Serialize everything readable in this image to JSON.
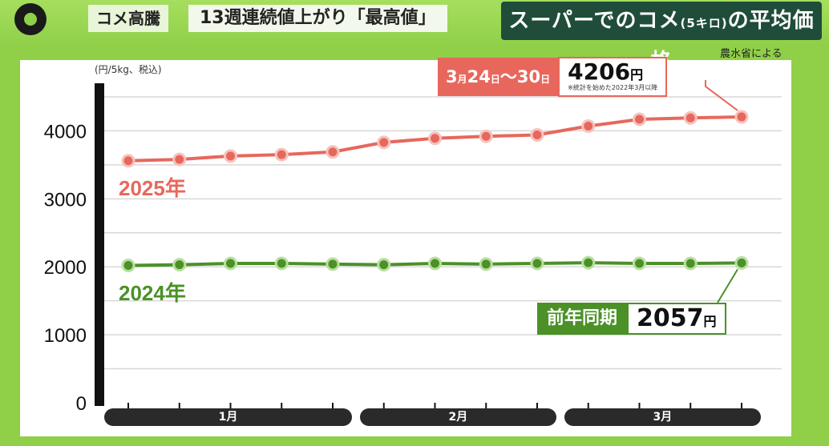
{
  "header": {
    "topic_label": "コメ高騰",
    "topic_headline": "13週連続値上がり「最高値」",
    "title_main": "スーパーでのコメ",
    "title_small": "(5キロ)",
    "title_tail": "の平均価格",
    "source": "農水省による"
  },
  "colors": {
    "series_2025": "#e8675c",
    "series_2024": "#4b9127",
    "background": "#8fd048",
    "title_bg": "#1f4d3a"
  },
  "chart_data": {
    "type": "line",
    "ylabel": "(円/5kg、税込)",
    "ylim": [
      0,
      4700
    ],
    "yticks": [
      0,
      1000,
      2000,
      3000,
      4000
    ],
    "grid": true,
    "x": [
      1,
      2,
      3,
      4,
      5,
      6,
      7,
      8,
      9,
      10,
      11,
      12,
      13
    ],
    "months": [
      {
        "label": "1月",
        "from": 1,
        "to": 5
      },
      {
        "label": "2月",
        "from": 6,
        "to": 9
      },
      {
        "label": "3月",
        "from": 10,
        "to": 13
      }
    ],
    "series": [
      {
        "name": "2025年",
        "color": "#e8675c",
        "values": [
          3560,
          3580,
          3630,
          3650,
          3690,
          3830,
          3890,
          3920,
          3940,
          4070,
          4170,
          4190,
          4206
        ]
      },
      {
        "name": "2024年",
        "color": "#4b9127",
        "values": [
          2020,
          2030,
          2050,
          2050,
          2040,
          2030,
          2050,
          2040,
          2050,
          2060,
          2050,
          2050,
          2057
        ]
      }
    ]
  },
  "callout_2025": {
    "date_month": "3",
    "date_month_unit": "月",
    "date_day_from": "24",
    "date_day_unit": "日",
    "date_sep": "～",
    "date_day_to": "30",
    "date_day_to_unit": "日",
    "value": "4206",
    "unit": "円",
    "note": "※統計を始めた2022年3月以降"
  },
  "callout_2024": {
    "label": "前年同期",
    "value": "2057",
    "unit": "円"
  }
}
